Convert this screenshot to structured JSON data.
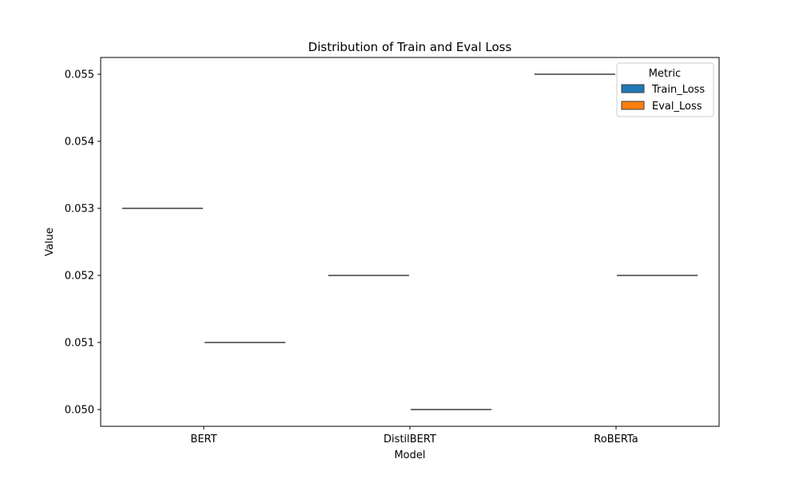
{
  "chart_data": {
    "type": "box",
    "title": "Distribution of Train and Eval Loss",
    "xlabel": "Model",
    "ylabel": "Value",
    "categories": [
      "BERT",
      "DistilBERT",
      "RoBERTa"
    ],
    "series": [
      {
        "name": "Train_Loss",
        "color": "#1f77b4",
        "values": [
          0.053,
          0.052,
          0.055
        ]
      },
      {
        "name": "Eval_Loss",
        "color": "#ff7f0e",
        "values": [
          0.051,
          0.05,
          0.052
        ]
      }
    ],
    "yticks": [
      0.05,
      0.051,
      0.052,
      0.053,
      0.054,
      0.055
    ],
    "ytick_labels": [
      "0.050",
      "0.051",
      "0.052",
      "0.053",
      "0.054",
      "0.055"
    ],
    "ylim": [
      0.04975,
      0.05525
    ],
    "grid": false,
    "legend": {
      "title": "Metric",
      "position": "top-right"
    }
  }
}
